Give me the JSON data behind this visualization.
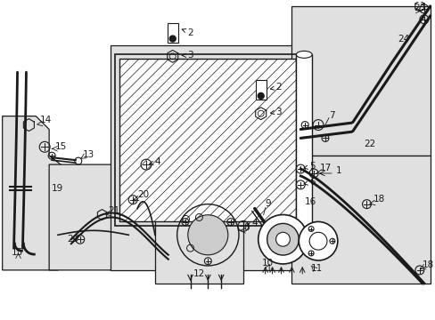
{
  "bg": "#ffffff",
  "lc": "#1a1a1a",
  "fc": "#d8d8d8",
  "panel_fc": "#e0e0e0",
  "white": "#ffffff",
  "hatch_color": "#555555"
}
